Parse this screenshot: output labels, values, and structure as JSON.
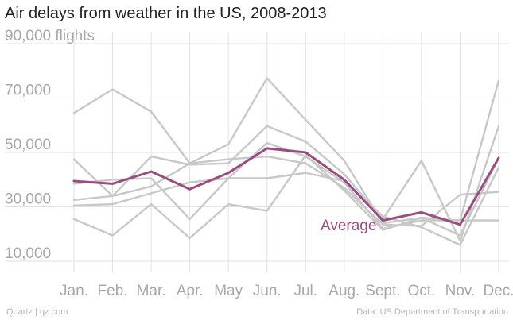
{
  "title": "Air delays from weather in the US, 2008-2013",
  "footer": {
    "left": "Quartz | qz.com",
    "right": "Data: US Department of Transportation"
  },
  "colors": {
    "series": "#c8c8c8",
    "average": "#9a4d7f",
    "grid": "#e2e2e2",
    "axis_text": "#a8a8a8"
  },
  "chart_data": {
    "type": "line",
    "title": "Air delays from weather in the US, 2008-2013",
    "categories": [
      "Jan.",
      "Feb.",
      "Mar.",
      "Apr.",
      "May",
      "Jun.",
      "Jul.",
      "Aug.",
      "Sept.",
      "Oct.",
      "Nov.",
      "Dec."
    ],
    "yticks": [
      {
        "value": 90000,
        "label": "90,000 flights"
      },
      {
        "value": 70000,
        "label": "70,000"
      },
      {
        "value": 50000,
        "label": "50,000"
      },
      {
        "value": 30000,
        "label": "30,000"
      },
      {
        "value": 10000,
        "label": "10,000"
      }
    ],
    "ylim": [
      6000,
      96000
    ],
    "grid": true,
    "series": [
      {
        "values": [
          64500,
          73200,
          65000,
          46000,
          53000,
          77300,
          62000,
          47000,
          24000,
          26000,
          25000,
          76500
        ]
      },
      {
        "values": [
          47500,
          34000,
          48500,
          45500,
          46000,
          59700,
          54000,
          42000,
          25500,
          47000,
          17500,
          59700
        ]
      },
      {
        "values": [
          38500,
          40000,
          40500,
          25500,
          40500,
          53500,
          48500,
          39000,
          22000,
          25000,
          25000,
          25000
        ]
      },
      {
        "values": [
          32500,
          34000,
          37500,
          46000,
          47500,
          48500,
          46000,
          37000,
          23500,
          23000,
          34500,
          35500
        ]
      },
      {
        "values": [
          30500,
          31000,
          35000,
          39000,
          40500,
          40500,
          42500,
          39500,
          26500,
          22500,
          16000,
          44500
        ]
      },
      {
        "values": [
          25500,
          19500,
          31000,
          18500,
          31000,
          28500,
          49000,
          36000,
          21500,
          26000,
          19500,
          48000
        ]
      },
      {
        "name": "Average",
        "values": [
          39500,
          38500,
          43000,
          36500,
          42500,
          51500,
          50000,
          40000,
          25000,
          28000,
          23500,
          48000
        ],
        "highlight": true
      }
    ]
  }
}
